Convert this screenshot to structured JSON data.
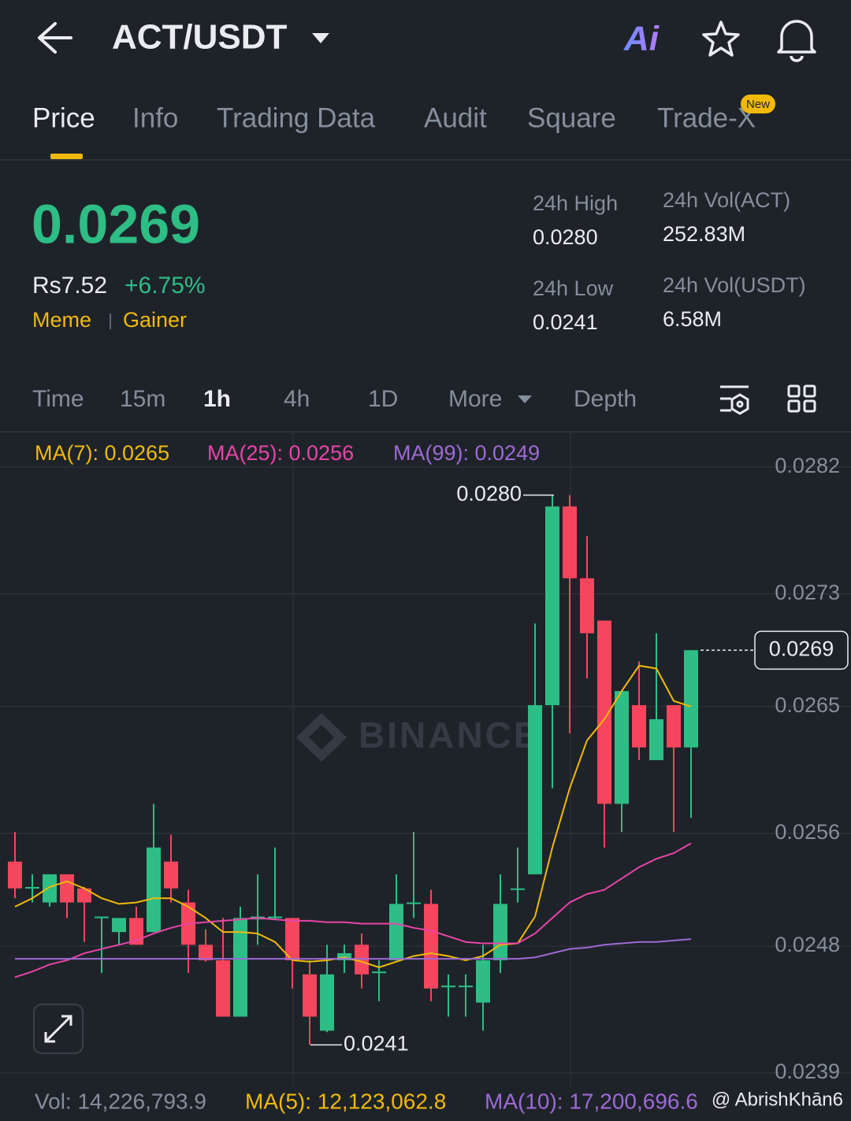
{
  "header": {
    "pair": "ACT/USDT",
    "ai_label": "Ai"
  },
  "tabs": {
    "items": [
      "Price",
      "Info",
      "Trading Data",
      "Audit",
      "Square",
      "Trade-X"
    ],
    "badge": "New"
  },
  "price": {
    "last": "0.0269",
    "fiat": "Rs7.52",
    "change": "+6.75%",
    "tags": [
      "Meme",
      "Gainer"
    ]
  },
  "stats": [
    {
      "label": "24h High",
      "value": "0.0280"
    },
    {
      "label": "24h Vol(ACT)",
      "value": "252.83M"
    },
    {
      "label": "24h Low",
      "value": "0.0241"
    },
    {
      "label": "24h Vol(USDT)",
      "value": "6.58M"
    }
  ],
  "intervals": [
    "Time",
    "15m",
    "1h",
    "4h",
    "1D",
    "More",
    "Depth"
  ],
  "chart_data": {
    "type": "candlestick",
    "watermark": "BINANCE",
    "ylim": [
      0.0238,
      0.02845
    ],
    "yticks": [
      0.0282,
      0.0273,
      0.0265,
      0.0256,
      0.0248,
      0.0239
    ],
    "up_color": "#2ebd85",
    "down_color": "#f6465d",
    "open": [
      0.0254,
      0.02521,
      0.02511,
      0.02531,
      0.02521,
      0.025,
      0.0249,
      0.025,
      0.0249,
      0.0254,
      0.02511,
      0.02481,
      0.0247,
      0.0243,
      0.02499,
      0.025,
      0.025,
      0.0246,
      0.0242,
      0.0247,
      0.02481,
      0.02461,
      0.0247,
      0.0251,
      0.0251,
      0.02451,
      0.02451,
      0.0244,
      0.0247,
      0.0252,
      0.02531,
      0.02651,
      0.02792,
      0.02741,
      0.02711,
      0.02581,
      0.02651,
      0.02612,
      0.02651,
      0.02621
    ],
    "high": [
      0.02561,
      0.02531,
      0.02531,
      0.02531,
      0.02522,
      0.02501,
      0.025,
      0.02508,
      0.02581,
      0.02559,
      0.0252,
      0.02492,
      0.025,
      0.02508,
      0.02531,
      0.0255,
      0.025,
      0.0247,
      0.02481,
      0.02481,
      0.02489,
      0.0247,
      0.02531,
      0.02561,
      0.0252,
      0.0246,
      0.0246,
      0.02481,
      0.02531,
      0.0255,
      0.02709,
      0.028,
      0.028,
      0.02771,
      0.02711,
      0.02661,
      0.02682,
      0.02702,
      0.02651,
      0.0269
    ],
    "low": [
      0.02514,
      0.02511,
      0.02508,
      0.025,
      0.02483,
      0.02461,
      0.02481,
      0.02481,
      0.0249,
      0.02511,
      0.02461,
      0.02469,
      0.0243,
      0.0243,
      0.02481,
      0.02499,
      0.0245,
      0.0241,
      0.02419,
      0.02461,
      0.0245,
      0.02441,
      0.0247,
      0.025,
      0.02441,
      0.0243,
      0.0243,
      0.0242,
      0.02461,
      0.02511,
      0.02531,
      0.02592,
      0.02631,
      0.0267,
      0.0255,
      0.02561,
      0.02612,
      0.02612,
      0.02561,
      0.02571
    ],
    "close": [
      0.02521,
      0.02522,
      0.02531,
      0.02511,
      0.02511,
      0.02501,
      0.025,
      0.02481,
      0.0255,
      0.02521,
      0.02481,
      0.0247,
      0.0243,
      0.025,
      0.02501,
      0.02501,
      0.0247,
      0.0243,
      0.0246,
      0.02475,
      0.0246,
      0.02462,
      0.0251,
      0.02511,
      0.0245,
      0.02452,
      0.02452,
      0.0247,
      0.0251,
      0.02521,
      0.02651,
      0.02792,
      0.02741,
      0.02702,
      0.02581,
      0.02661,
      0.02621,
      0.02641,
      0.02621,
      0.0269
    ],
    "series": [
      {
        "name": "MA(7): 0.0265",
        "color": "#f0b90b",
        "values": [
          0.02508,
          0.02514,
          0.02522,
          0.02526,
          0.02521,
          0.02514,
          0.0251,
          0.02511,
          0.02514,
          0.02514,
          0.02508,
          0.025,
          0.0249,
          0.0249,
          0.02489,
          0.02483,
          0.0247,
          0.02469,
          0.0247,
          0.02472,
          0.02469,
          0.02465,
          0.02469,
          0.02473,
          0.02475,
          0.02473,
          0.0247,
          0.02473,
          0.02481,
          0.02482,
          0.02501,
          0.0255,
          0.02592,
          0.02626,
          0.02641,
          0.02661,
          0.02679,
          0.02677,
          0.02654,
          0.0265
        ]
      },
      {
        "name": "MA(25): 0.0256",
        "color": "#e844a8",
        "values": [
          0.02458,
          0.02462,
          0.02467,
          0.0247,
          0.02475,
          0.02478,
          0.02481,
          0.02484,
          0.02489,
          0.02493,
          0.02496,
          0.02497,
          0.02498,
          0.02499,
          0.025,
          0.02499,
          0.02498,
          0.02498,
          0.02497,
          0.02497,
          0.02496,
          0.02496,
          0.02496,
          0.02493,
          0.02491,
          0.02487,
          0.02483,
          0.02482,
          0.02482,
          0.02482,
          0.02489,
          0.025,
          0.02511,
          0.02517,
          0.0252,
          0.02528,
          0.02536,
          0.02542,
          0.02546,
          0.02553
        ]
      },
      {
        "name": "MA(99): 0.0249",
        "color": "#9d6ad6",
        "values": [
          0.02471,
          0.02471,
          0.02471,
          0.02471,
          0.02471,
          0.02471,
          0.02471,
          0.02471,
          0.02471,
          0.02471,
          0.02471,
          0.02471,
          0.02471,
          0.02471,
          0.02471,
          0.02471,
          0.02471,
          0.02471,
          0.02471,
          0.02471,
          0.02471,
          0.02471,
          0.02471,
          0.02471,
          0.02471,
          0.02471,
          0.02471,
          0.02471,
          0.02471,
          0.02471,
          0.02472,
          0.02475,
          0.02478,
          0.02479,
          0.02481,
          0.02482,
          0.02483,
          0.02483,
          0.02484,
          0.02485
        ]
      }
    ],
    "high_marker": {
      "value": 0.028,
      "label": "0.0280"
    },
    "low_marker": {
      "value": 0.0241,
      "label": "0.0241"
    },
    "last_marker": {
      "value": 0.0269,
      "label": "0.0269"
    }
  },
  "volume": {
    "vol": "Vol: 14,226,793.9",
    "ma5": "MA(5): 12,123,062.8",
    "ma10": "MA(10): 17,200,696.6"
  },
  "credit": "@ AbrishKhān6"
}
